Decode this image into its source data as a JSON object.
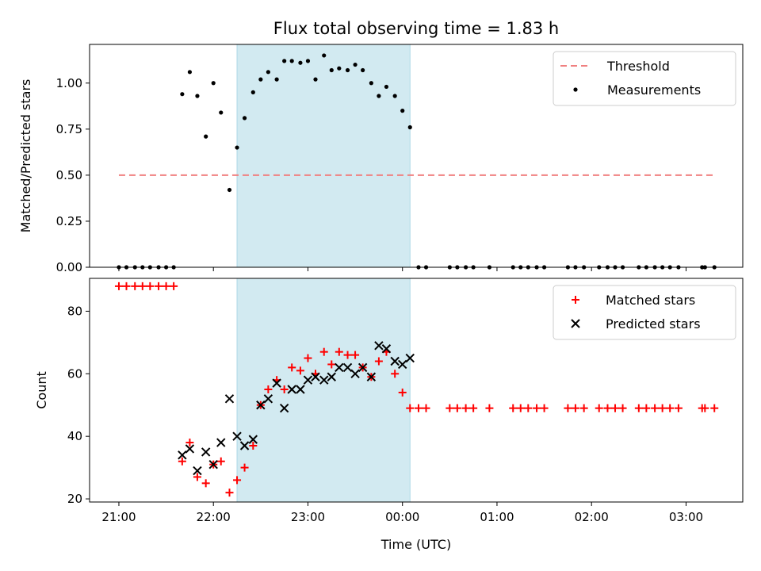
{
  "figure": {
    "title": "Flux total observing time = 1.83 h",
    "xlabel": "Time (UTC)"
  },
  "colors": {
    "shade": "#add8e6",
    "threshold": "#f08080",
    "measurements": "#000000",
    "matched": "#ff0000",
    "predicted": "#000000"
  },
  "chart_data": [
    {
      "type": "scatter",
      "ylabel": "Matched/Predicted stars",
      "xlim": [
        20.69,
        27.6
      ],
      "ylim": [
        0,
        1.21
      ],
      "xticks": [
        21,
        22,
        23,
        24,
        25,
        26,
        27
      ],
      "xticklabels": [
        "21:00",
        "22:00",
        "23:00",
        "00:00",
        "01:00",
        "02:00",
        "03:00"
      ],
      "yticks": [
        0,
        0.25,
        0.5,
        0.75,
        1.0
      ],
      "yticklabels": [
        "0.00",
        "0.25",
        "0.50",
        "0.75",
        "1.00"
      ],
      "shaded_interval": [
        22.25,
        24.08
      ],
      "legend": {
        "position": "top-right",
        "entries": [
          "Threshold",
          "Measurements"
        ]
      },
      "threshold": {
        "name": "Threshold",
        "y": 0.5,
        "x": [
          21.0,
          27.3
        ]
      },
      "series": [
        {
          "name": "Measurements",
          "x": [
            21.0,
            21.08,
            21.17,
            21.25,
            21.33,
            21.42,
            21.5,
            21.58,
            21.67,
            21.75,
            21.83,
            21.92,
            22.0,
            22.08,
            22.17,
            22.25,
            22.33,
            22.42,
            22.5,
            22.58,
            22.67,
            22.75,
            22.83,
            22.92,
            23.0,
            23.08,
            23.17,
            23.25,
            23.33,
            23.42,
            23.5,
            23.58,
            23.67,
            23.75,
            23.83,
            23.92,
            24.0,
            24.08,
            24.17,
            24.25,
            24.5,
            24.58,
            24.67,
            24.75,
            24.92,
            25.17,
            25.25,
            25.33,
            25.42,
            25.5,
            25.75,
            25.83,
            25.92,
            26.08,
            26.17,
            26.25,
            26.33,
            26.5,
            26.58,
            26.67,
            26.75,
            26.83,
            26.92,
            27.17,
            27.2,
            27.3
          ],
          "y": [
            0,
            0,
            0,
            0,
            0,
            0,
            0,
            0,
            0.94,
            1.06,
            0.93,
            0.71,
            1.0,
            0.84,
            0.42,
            0.65,
            0.81,
            0.95,
            1.02,
            1.06,
            1.02,
            1.12,
            1.12,
            1.11,
            1.12,
            1.02,
            1.15,
            1.07,
            1.08,
            1.07,
            1.1,
            1.07,
            1.0,
            0.93,
            0.98,
            0.93,
            0.85,
            0.76,
            0,
            0,
            0,
            0,
            0,
            0,
            0,
            0,
            0,
            0,
            0,
            0,
            0,
            0,
            0,
            0,
            0,
            0,
            0,
            0,
            0,
            0,
            0,
            0,
            0,
            0,
            0,
            0
          ]
        }
      ]
    },
    {
      "type": "scatter",
      "ylabel": "Count",
      "xlim": [
        20.69,
        27.6
      ],
      "ylim": [
        19,
        90.5
      ],
      "xticks": [
        21,
        22,
        23,
        24,
        25,
        26,
        27
      ],
      "xticklabels": [
        "21:00",
        "22:00",
        "23:00",
        "00:00",
        "01:00",
        "02:00",
        "03:00"
      ],
      "yticks": [
        20,
        40,
        60,
        80
      ],
      "yticklabels": [
        "20",
        "40",
        "60",
        "80"
      ],
      "shaded_interval": [
        22.25,
        24.08
      ],
      "legend": {
        "position": "top-right",
        "entries": [
          "Matched stars",
          "Predicted stars"
        ]
      },
      "series": [
        {
          "name": "Matched stars",
          "marker": "plus",
          "x": [
            21.0,
            21.08,
            21.17,
            21.25,
            21.33,
            21.42,
            21.5,
            21.58,
            21.67,
            21.75,
            21.83,
            21.92,
            22.0,
            22.08,
            22.17,
            22.25,
            22.33,
            22.42,
            22.5,
            22.58,
            22.67,
            22.75,
            22.83,
            22.92,
            23.0,
            23.08,
            23.17,
            23.25,
            23.33,
            23.42,
            23.5,
            23.58,
            23.67,
            23.75,
            23.83,
            23.92,
            24.0,
            24.08,
            24.17,
            24.25,
            24.5,
            24.58,
            24.67,
            24.75,
            24.92,
            25.17,
            25.25,
            25.33,
            25.42,
            25.5,
            25.75,
            25.83,
            25.92,
            26.08,
            26.17,
            26.25,
            26.33,
            26.5,
            26.58,
            26.67,
            26.75,
            26.83,
            26.92,
            27.17,
            27.2,
            27.3
          ],
          "y": [
            88,
            88,
            88,
            88,
            88,
            88,
            88,
            88,
            32,
            38,
            27,
            25,
            31,
            32,
            22,
            26,
            30,
            37,
            50,
            55,
            58,
            55,
            62,
            61,
            65,
            60,
            67,
            63,
            67,
            66,
            66,
            62,
            59,
            64,
            67,
            60,
            54,
            49,
            49,
            49,
            49,
            49,
            49,
            49,
            49,
            49,
            49,
            49,
            49,
            49,
            49,
            49,
            49,
            49,
            49,
            49,
            49,
            49,
            49,
            49,
            49,
            49,
            49,
            49,
            49,
            49
          ]
        },
        {
          "name": "Predicted stars",
          "marker": "cross",
          "x": [
            21.67,
            21.75,
            21.83,
            21.92,
            22.0,
            22.08,
            22.17,
            22.25,
            22.33,
            22.42,
            22.5,
            22.58,
            22.67,
            22.75,
            22.83,
            22.92,
            23.0,
            23.08,
            23.17,
            23.25,
            23.33,
            23.42,
            23.5,
            23.58,
            23.67,
            23.75,
            23.83,
            23.92,
            24.0,
            24.08
          ],
          "y": [
            34,
            36,
            29,
            35,
            31,
            38,
            52,
            40,
            37,
            39,
            50,
            52,
            57,
            49,
            55,
            55,
            58,
            59,
            58,
            59,
            62,
            62,
            60,
            62,
            59,
            69,
            68,
            64,
            63,
            65
          ]
        }
      ]
    }
  ]
}
